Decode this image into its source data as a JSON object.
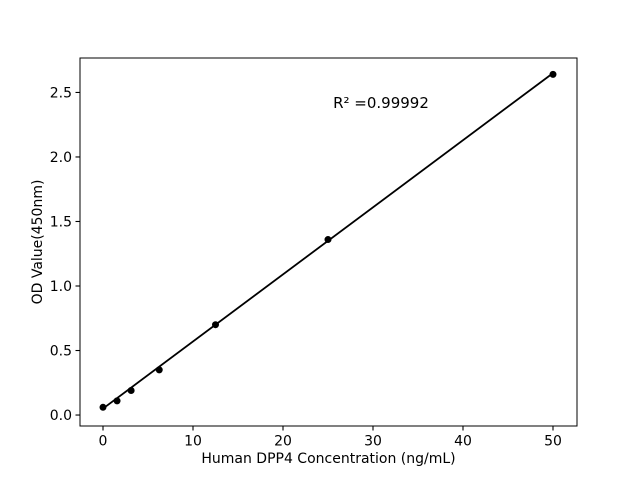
{
  "figure": {
    "background": "#ffffff"
  },
  "chart_data": {
    "type": "scatter",
    "title": "",
    "xlabel": "Human DPP4 Concentration (ng/mL)",
    "ylabel": "OD Value(450nm)",
    "annotation": "R² =0.99992",
    "x": [
      0,
      1.5625,
      3.125,
      6.25,
      12.5,
      25,
      50
    ],
    "y": [
      0.06,
      0.11,
      0.19,
      0.35,
      0.7,
      1.36,
      2.64
    ],
    "fit_line": {
      "x": [
        0,
        50
      ],
      "y": [
        0.05,
        2.65
      ],
      "r_squared": 0.99992
    },
    "xticks": {
      "values": [
        0,
        10,
        20,
        30,
        40,
        50
      ],
      "labels": [
        "0",
        "10",
        "20",
        "30",
        "40",
        "50"
      ]
    },
    "yticks": {
      "values": [
        0,
        0.5,
        1,
        1.5,
        2,
        2.5
      ],
      "labels": [
        "0.0",
        "0.5",
        "1.0",
        "1.5",
        "2.0",
        "2.5"
      ]
    },
    "xlim": [
      -2.556,
      52.667
    ],
    "ylim": [
      -0.085,
      2.767
    ],
    "grid": false,
    "legend": "none",
    "marker": "circle",
    "colors": {
      "marker": "#000000",
      "line": "#000000",
      "spine": "#000000",
      "text": "#000000",
      "background": "#ffffff"
    }
  }
}
